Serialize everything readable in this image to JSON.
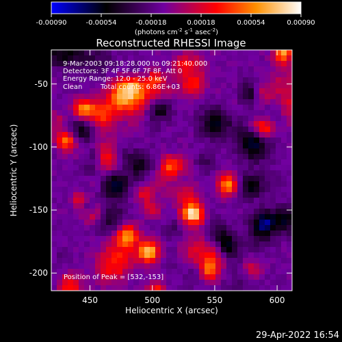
{
  "colorbar": {
    "ticks": [
      "-0.00090",
      "-0.00054",
      "-0.00018",
      "0.00018",
      "0.00054",
      "0.00090"
    ],
    "unit_label": "(photons cm",
    "unit_exp1": "-2",
    "unit_mid": " s",
    "unit_exp2": "-1",
    "unit_mid2": " asec",
    "unit_exp3": "-2",
    "unit_end": ")",
    "range": [
      -0.0009,
      0.0009
    ],
    "colors": [
      "#0000ff",
      "#000000",
      "#7000a0",
      "#ff0000",
      "#ff9000",
      "#ffffff"
    ]
  },
  "chart_data": {
    "type": "heatmap",
    "title": "Reconstructed RHESSI Image",
    "xlabel": "Heliocentric X (arcsec)",
    "ylabel": "Heliocentric Y (arcsec)",
    "xlim": [
      419,
      612
    ],
    "ylim": [
      -214,
      -23
    ],
    "x_ticks": [
      450,
      500,
      550,
      600
    ],
    "y_ticks": [
      -50,
      -100,
      -150,
      -200
    ],
    "annotations": [
      "9-Mar-2003 09:18:28.000 to 09:21:40.000",
      "Detectors: 3F 4F 5F 6F 7F 8F, Att 0",
      "Energy Range: 12.0 - 25.0 keV",
      "Clean",
      "Total counts: 6.86E+03"
    ],
    "peak_label": "Position of Peak = [532,-153]",
    "peak": [
      532,
      -153
    ]
  },
  "footer": {
    "timestamp": "29-Apr-2022 16:54"
  }
}
